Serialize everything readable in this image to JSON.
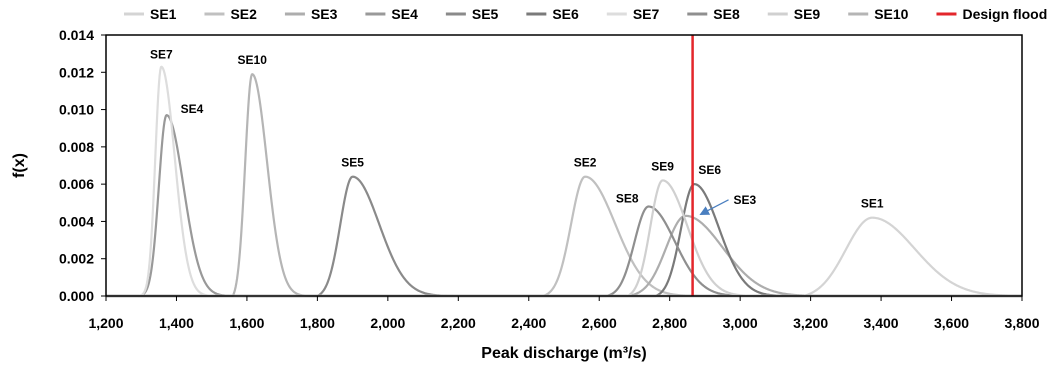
{
  "chart_data": {
    "type": "line",
    "xlabel": "Peak discharge (m³/s)",
    "ylabel": "f(x)",
    "xlim": [
      1200,
      3800
    ],
    "ylim": [
      0,
      0.014
    ],
    "x_ticks": [
      "1,200",
      "1,400",
      "1,600",
      "1,800",
      "2,000",
      "2,200",
      "2,400",
      "2,600",
      "2,800",
      "3,000",
      "3,200",
      "3,400",
      "3,600",
      "3,800"
    ],
    "y_ticks": [
      "0.000",
      "0.002",
      "0.004",
      "0.006",
      "0.008",
      "0.010",
      "0.012",
      "0.014"
    ],
    "legend_position": "top",
    "grid": false,
    "series": [
      {
        "name": "SE1",
        "label": "SE1",
        "color": "#d4d4d4",
        "start": 3180,
        "peak_x": 3375,
        "peak_y": 0.0042,
        "left_sigma": 75,
        "right_sigma": 120
      },
      {
        "name": "SE2",
        "label": "SE2",
        "color": "#c0c0c0",
        "start": 2440,
        "peak_x": 2560,
        "peak_y": 0.0064,
        "left_sigma": 40,
        "right_sigma": 85
      },
      {
        "name": "SE3",
        "label": "SE3",
        "color": "#adadad",
        "start": 2680,
        "peak_x": 2845,
        "peak_y": 0.0043,
        "left_sigma": 55,
        "right_sigma": 105
      },
      {
        "name": "SE4",
        "label": "SE4",
        "color": "#999999",
        "start": 1290,
        "peak_x": 1372,
        "peak_y": 0.0097,
        "left_sigma": 22,
        "right_sigma": 48
      },
      {
        "name": "SE5",
        "label": "SE5",
        "color": "#8a8a8a",
        "start": 1800,
        "peak_x": 1900,
        "peak_y": 0.0064,
        "left_sigma": 35,
        "right_sigma": 75
      },
      {
        "name": "SE6",
        "label": "SE6",
        "color": "#7a7a7a",
        "start": 2760,
        "peak_x": 2870,
        "peak_y": 0.006,
        "left_sigma": 38,
        "right_sigma": 70
      },
      {
        "name": "SE7",
        "label": "SE7",
        "color": "#dddddd",
        "start": 1290,
        "peak_x": 1357,
        "peak_y": 0.0123,
        "left_sigma": 17,
        "right_sigma": 38
      },
      {
        "name": "SE8",
        "label": "SE8",
        "color": "#8f8f8f",
        "start": 2620,
        "peak_x": 2740,
        "peak_y": 0.0048,
        "left_sigma": 40,
        "right_sigma": 75
      },
      {
        "name": "SE9",
        "label": "SE9",
        "color": "#d0d0d0",
        "start": 2680,
        "peak_x": 2780,
        "peak_y": 0.0062,
        "left_sigma": 35,
        "right_sigma": 70
      },
      {
        "name": "SE10",
        "label": "SE10",
        "color": "#b5b5b5",
        "start": 1560,
        "peak_x": 1615,
        "peak_y": 0.0119,
        "left_sigma": 20,
        "right_sigma": 42
      }
    ],
    "design_flood": {
      "name": "Design flood",
      "x": 2865,
      "color": "#e3262b"
    }
  }
}
